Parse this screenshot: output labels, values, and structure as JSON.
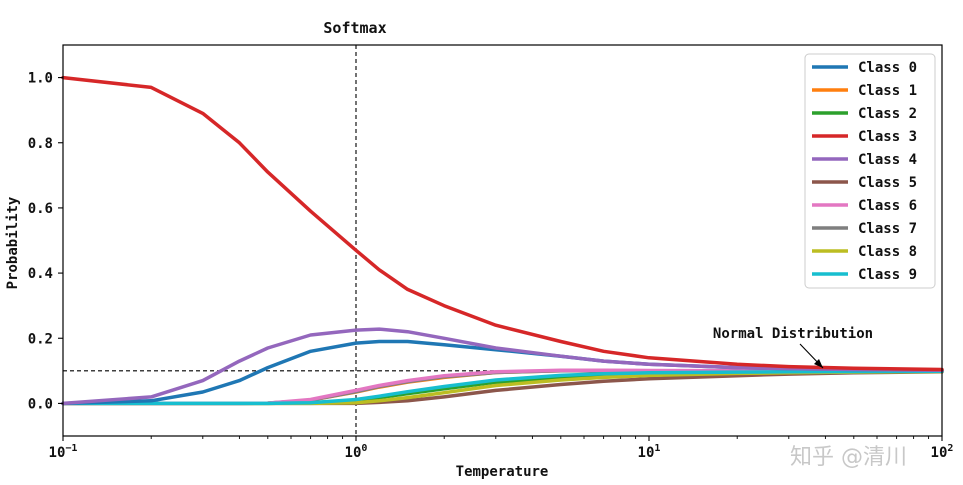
{
  "chart_data": {
    "type": "line",
    "title": "Softmax",
    "xlabel": "Temperature",
    "ylabel": "Probability",
    "xscale": "log",
    "xlim": [
      0.1,
      100
    ],
    "ylim": [
      -0.1,
      1.1
    ],
    "x_ticks": [
      {
        "value": 0.1,
        "base": "10",
        "exp": "−1"
      },
      {
        "value": 1,
        "base": "10",
        "exp": "0"
      },
      {
        "value": 10,
        "base": "10",
        "exp": "1"
      },
      {
        "value": 100,
        "base": "10",
        "exp": "2"
      }
    ],
    "y_ticks": [
      {
        "value": 0.0,
        "label": "0.0"
      },
      {
        "value": 0.2,
        "label": "0.2"
      },
      {
        "value": 0.4,
        "label": "0.4"
      },
      {
        "value": 0.6,
        "label": "0.6"
      },
      {
        "value": 0.8,
        "label": "0.8"
      },
      {
        "value": 1.0,
        "label": "1.0"
      }
    ],
    "x": [
      0.1,
      0.2,
      0.3,
      0.4,
      0.5,
      0.7,
      1.0,
      1.2,
      1.5,
      2,
      3,
      5,
      7,
      10,
      20,
      30,
      50,
      100
    ],
    "series": [
      {
        "name": "Class 0",
        "color": "#1f77b4",
        "values": [
          0.0,
          0.008,
          0.035,
          0.07,
          0.11,
          0.16,
          0.185,
          0.19,
          0.19,
          0.18,
          0.165,
          0.145,
          0.13,
          0.12,
          0.11,
          0.107,
          0.104,
          0.102
        ]
      },
      {
        "name": "Class 1",
        "color": "#ff7f0e",
        "values": [
          0.0,
          0.0,
          0.0,
          0.0,
          0.001,
          0.01,
          0.035,
          0.05,
          0.065,
          0.08,
          0.095,
          0.1,
          0.1,
          0.1,
          0.1,
          0.1,
          0.1,
          0.1
        ]
      },
      {
        "name": "Class 2",
        "color": "#2ca02c",
        "values": [
          0.0,
          0.0,
          0.0,
          0.0,
          0.0,
          0.002,
          0.01,
          0.018,
          0.03,
          0.045,
          0.065,
          0.08,
          0.087,
          0.09,
          0.095,
          0.096,
          0.097,
          0.098
        ]
      },
      {
        "name": "Class 3",
        "color": "#d62728",
        "values": [
          1.0,
          0.97,
          0.89,
          0.8,
          0.71,
          0.59,
          0.47,
          0.41,
          0.35,
          0.3,
          0.24,
          0.19,
          0.16,
          0.14,
          0.12,
          0.113,
          0.108,
          0.104
        ]
      },
      {
        "name": "Class 4",
        "color": "#9467bd",
        "values": [
          0.0,
          0.02,
          0.07,
          0.13,
          0.17,
          0.21,
          0.225,
          0.228,
          0.22,
          0.2,
          0.17,
          0.145,
          0.13,
          0.12,
          0.11,
          0.107,
          0.104,
          0.102
        ]
      },
      {
        "name": "Class 5",
        "color": "#8c564b",
        "values": [
          0.0,
          0.0,
          0.0,
          0.0,
          0.0,
          0.0,
          0.0,
          0.003,
          0.008,
          0.02,
          0.04,
          0.058,
          0.068,
          0.076,
          0.085,
          0.09,
          0.094,
          0.097
        ]
      },
      {
        "name": "Class 6",
        "color": "#e377c2",
        "values": [
          0.0,
          0.0,
          0.0,
          0.0,
          0.001,
          0.012,
          0.04,
          0.055,
          0.07,
          0.085,
          0.097,
          0.102,
          0.102,
          0.101,
          0.1,
          0.1,
          0.1,
          0.1
        ]
      },
      {
        "name": "Class 7",
        "color": "#7f7f7f",
        "values": [
          0.0,
          0.0,
          0.0,
          0.0,
          0.001,
          0.01,
          0.036,
          0.052,
          0.067,
          0.082,
          0.095,
          0.1,
          0.1,
          0.1,
          0.1,
          0.1,
          0.1,
          0.1
        ]
      },
      {
        "name": "Class 8",
        "color": "#bcbd22",
        "values": [
          0.0,
          0.0,
          0.0,
          0.0,
          0.0,
          0.0,
          0.002,
          0.008,
          0.018,
          0.033,
          0.055,
          0.072,
          0.08,
          0.086,
          0.092,
          0.094,
          0.096,
          0.098
        ]
      },
      {
        "name": "Class 9",
        "color": "#17becf",
        "values": [
          0.0,
          0.0,
          0.0,
          0.0,
          0.0,
          0.002,
          0.012,
          0.022,
          0.036,
          0.052,
          0.072,
          0.086,
          0.091,
          0.094,
          0.096,
          0.097,
          0.098,
          0.099
        ]
      }
    ],
    "reference_lines": [
      {
        "orientation": "vertical",
        "value": 1
      },
      {
        "orientation": "horizontal",
        "value": 0.1
      }
    ],
    "annotation": {
      "text": "Normal Distribution",
      "xy": [
        20,
        0.1
      ]
    },
    "legend_location": "top-right",
    "grid": false
  },
  "watermark": "知乎 @清川"
}
